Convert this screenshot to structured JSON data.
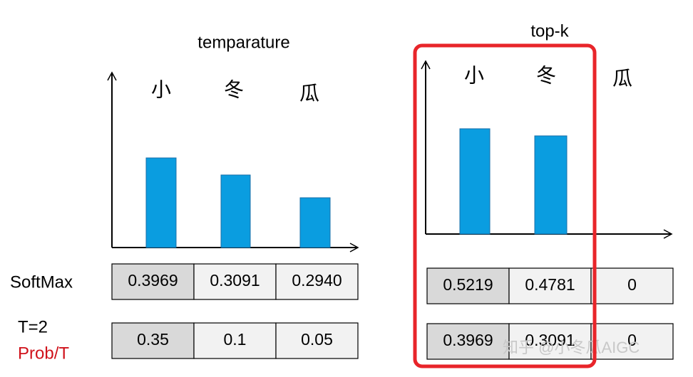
{
  "left": {
    "title": "temparature",
    "bar_labels": [
      "小",
      "冬",
      "瓜"
    ],
    "rows": [
      {
        "labels": [
          "SoftMax"
        ],
        "cells": [
          "0.3969",
          "0.3091",
          "0.2940"
        ]
      },
      {
        "labels": [
          "T=2",
          "Prob/T"
        ],
        "cells": [
          "0.35",
          "0.1",
          "0.05"
        ]
      }
    ]
  },
  "right": {
    "title": "top-k",
    "bar_labels": [
      "小",
      "冬",
      "瓜"
    ],
    "rows": [
      {
        "cells": [
          "0.5219",
          "0.4781",
          "0"
        ]
      },
      {
        "cells": [
          "0.3969",
          "0.3091",
          "0"
        ]
      }
    ]
  },
  "watermark": "知乎 @小冬瓜AIGC"
}
